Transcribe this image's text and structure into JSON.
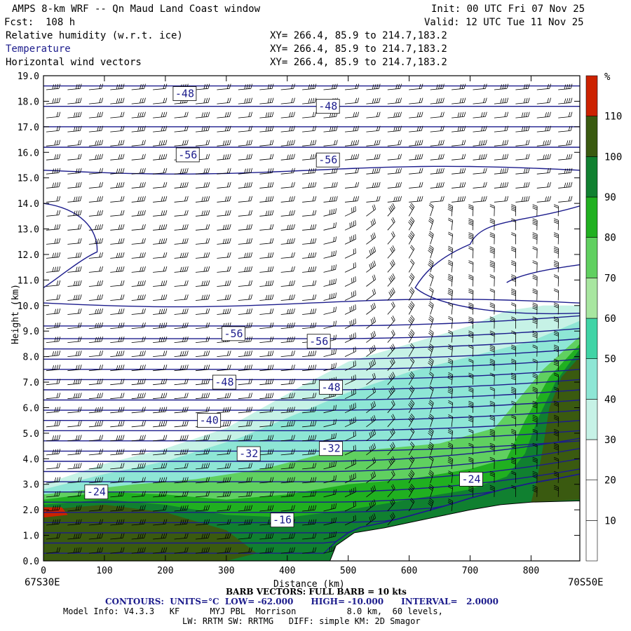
{
  "header": {
    "title": "AMPS 8-km WRF -- Qn Maud Land Coast window",
    "forecast": "Fcst:  108 h",
    "init": "Init: 00 UTC Fri 07 Nov 25",
    "valid": "Valid: 12 UTC Tue 11 Nov 25",
    "fields": [
      {
        "name": "Relative humidity (w.r.t. ice)",
        "xy": "XY= 266.4, 85.9 to 214.7,183.2"
      },
      {
        "name": "Temperature",
        "xy": "XY= 266.4, 85.9 to 214.7,183.2"
      },
      {
        "name": "Horizontal wind vectors",
        "xy": "XY= 266.4, 85.9 to 214.7,183.2"
      }
    ]
  },
  "footer": {
    "left_end": "67S30E",
    "right_end": "70S50E",
    "barb": "BARB VECTORS: FULL BARB = 10 kts",
    "contours": "CONTOURS:  UNITS=°C  LOW= -62.000      HIGH= -10.000      INTERVAL=   2.0000",
    "model1": "Model Info: V4.3.3   KF      MYJ PBL  Morrison          8.0 km,  60 levels,",
    "model2": "LW: RRTM SW: RRTMG   DIFF: simple KM: 2D Smagor"
  },
  "colorbar": {
    "unit": "%",
    "ticks": [
      "10",
      "20",
      "30",
      "40",
      "50",
      "60",
      "70",
      "80",
      "90",
      "100",
      "110"
    ],
    "colors": [
      "#ffffff",
      "#ffffff",
      "#ffffff",
      "#c6f2e6",
      "#8ee6d5",
      "#40d4a6",
      "#a8e6a0",
      "#60d060",
      "#20b020",
      "#108030",
      "#3a5a10",
      "#cc2200"
    ]
  },
  "chart_data": {
    "type": "heatmap",
    "xlabel": "Distance (km)",
    "ylabel": "Height (km)",
    "xlim": [
      0,
      880
    ],
    "ylim": [
      0,
      19
    ],
    "xticks": [
      "0",
      "100",
      "200",
      "300",
      "400",
      "500",
      "600",
      "700",
      "800"
    ],
    "yticks": [
      "0.0",
      "1.0",
      "2.0",
      "3.0",
      "4.0",
      "5.0",
      "6.0",
      "7.0",
      "8.0",
      "9.0",
      "10.0",
      "11.0",
      "12.0",
      "13.0",
      "14.0",
      "15.0",
      "16.0",
      "17.0",
      "18.0",
      "19.0"
    ],
    "contour_labels": [
      {
        "text": "-48",
        "x": 215,
        "y": 18.3
      },
      {
        "text": "-48",
        "x": 450,
        "y": 17.8
      },
      {
        "text": "-56",
        "x": 220,
        "y": 15.9
      },
      {
        "text": "-56",
        "x": 450,
        "y": 15.7
      },
      {
        "text": "-56",
        "x": 295,
        "y": 8.9
      },
      {
        "text": "-56",
        "x": 435,
        "y": 8.6
      },
      {
        "text": "-48",
        "x": 280,
        "y": 7.0
      },
      {
        "text": "-48",
        "x": 455,
        "y": 6.8
      },
      {
        "text": "-40",
        "x": 255,
        "y": 5.5
      },
      {
        "text": "-32",
        "x": 320,
        "y": 4.2
      },
      {
        "text": "-32",
        "x": 455,
        "y": 4.4
      },
      {
        "text": "-24",
        "x": 685,
        "y": 3.2
      },
      {
        "text": "-24",
        "x": 70,
        "y": 2.7
      },
      {
        "text": "-16",
        "x": 375,
        "y": 1.6
      }
    ],
    "terrain": [
      [
        0,
        0
      ],
      [
        470,
        0
      ],
      [
        480,
        0.6
      ],
      [
        510,
        1.1
      ],
      [
        560,
        1.3
      ],
      [
        600,
        1.5
      ],
      [
        650,
        1.75
      ],
      [
        700,
        2.0
      ],
      [
        750,
        2.2
      ],
      [
        800,
        2.3
      ],
      [
        880,
        2.35
      ]
    ]
  }
}
